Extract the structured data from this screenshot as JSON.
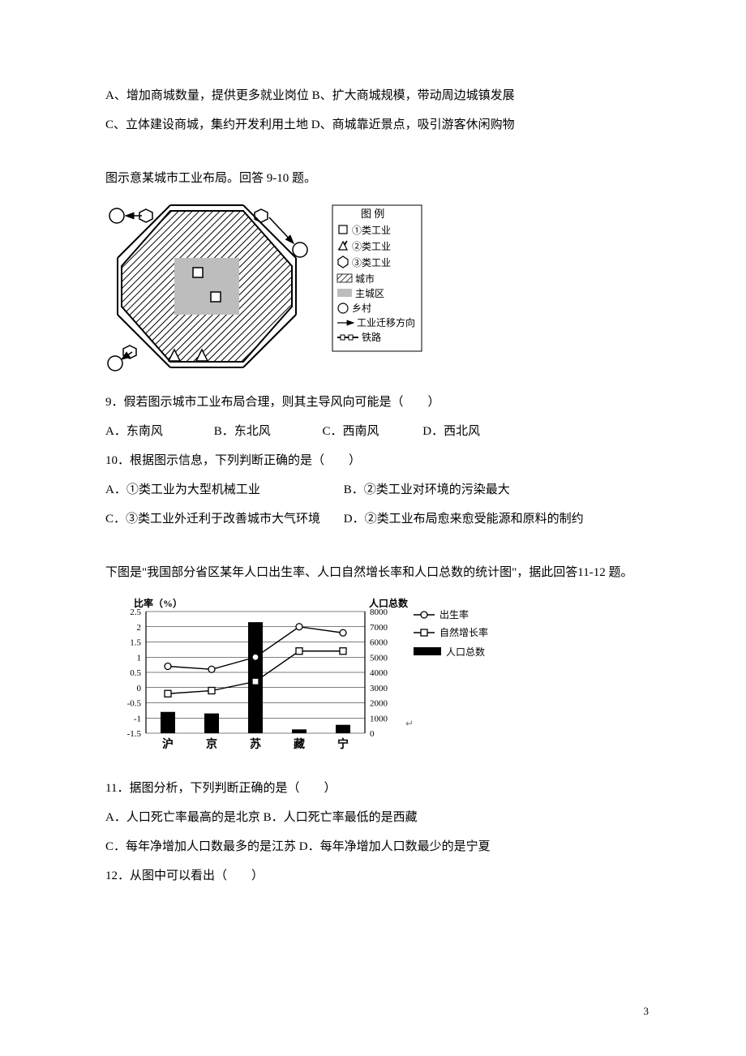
{
  "top": {
    "lineA": "A、增加商城数量，提供更多就业岗位 B、扩大商城规模，带动周边城镇发展",
    "lineC": "C、立体建设商城，集约开发利用土地 D、商城靠近景点，吸引游客休闲购物"
  },
  "fig1": {
    "intro": "图示意某城市工业布局。回答 9-10 题。",
    "legend_title": "图 例",
    "legend_items": [
      {
        "symbol": "square",
        "label": "①类工业"
      },
      {
        "symbol": "triangle",
        "label": "②类工业"
      },
      {
        "symbol": "hex",
        "label": "③类工业"
      },
      {
        "symbol": "hatch",
        "label": "城市"
      },
      {
        "symbol": "gray",
        "label": "主城区"
      },
      {
        "symbol": "circle",
        "label": "乡村"
      },
      {
        "symbol": "arrow",
        "label": "工业迁移方向"
      },
      {
        "symbol": "rail",
        "label": "铁路"
      }
    ],
    "colors": {
      "black": "#000000",
      "gray": "#bdbdbd",
      "hatch": "#000000",
      "white": "#ffffff"
    }
  },
  "q9": {
    "stem": "9．假若图示城市工业布局合理，则其主导风向可能是（　　）",
    "optA": "A．东南风",
    "optB": "B．东北风",
    "optC": "C．西南风",
    "optD": "D．西北风"
  },
  "q10": {
    "stem": "10．根据图示信息，下列判断正确的是（　　）",
    "optA": "A．①类工业为大型机械工业",
    "optB": "B．②类工业对环境的污染最大",
    "optC": "C．③类工业外迁利于改善城市大气环境",
    "optD": "D．②类工业布局愈来愈受能源和原料的制约"
  },
  "fig2": {
    "intro": "下图是\"我国部分省区某年人口出生率、人口自然增长率和人口总数的统计图\"，据此回答11-12 题。",
    "y_left_title": "比率（%）",
    "y_right_title": "人口总数",
    "legend": {
      "birth": "出生率",
      "natural": "自然增长率",
      "pop": "人口总数"
    },
    "colors": {
      "axis": "#000000",
      "grid": "#000000",
      "bar": "#000000",
      "line": "#000000",
      "marker_fill": "#ffffff",
      "bg": "#ffffff"
    },
    "x_categories": [
      "沪",
      "京",
      "苏",
      "藏",
      "宁"
    ],
    "y_left_ticks": [
      "2.5",
      "2",
      "1.5",
      "1",
      "0.5",
      "0",
      "-0.5",
      "-1",
      "-1.5"
    ],
    "y_left_min": -1.5,
    "y_left_max": 2.5,
    "y_left_step": 0.5,
    "y_right_ticks": [
      "8000",
      "7000",
      "6000",
      "5000",
      "4000",
      "3000",
      "2000",
      "1000",
      "0"
    ],
    "y_right_min": 0,
    "y_right_max": 8000,
    "y_right_step": 1000,
    "birth_rate": [
      0.7,
      0.6,
      1.0,
      2.0,
      1.8
    ],
    "natural_rate": [
      -0.2,
      -0.1,
      0.2,
      1.2,
      1.2
    ],
    "population": [
      1400,
      1300,
      7300,
      250,
      550
    ]
  },
  "q11": {
    "stem": "11．据图分析，下列判断正确的是（　　）",
    "lineAB": "A．人口死亡率最高的是北京 B．人口死亡率最低的是西藏",
    "lineCD": "C．每年净增加人口数最多的是江苏 D．每年净增加人口数最少的是宁夏"
  },
  "q12": {
    "stem": "12．从图中可以看出（　　）"
  },
  "page_number": "3"
}
